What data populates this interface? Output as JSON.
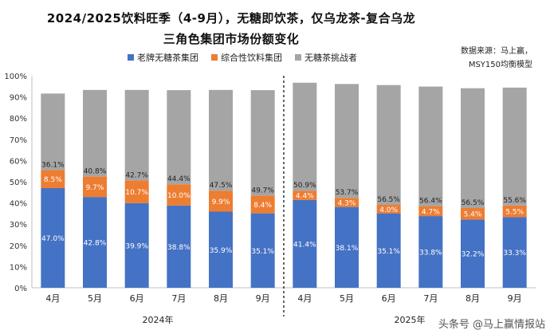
{
  "chart_data": {
    "type": "bar",
    "stacked": true,
    "title_line1": "2024/2025饮料旺季（4-9月），无糖即饮茶，仅乌龙茶-复合乌龙",
    "title_line2": "三角色集团市场份额变化",
    "source_line1": "数据来源：马上赢，",
    "source_line2": "MSY150均衡模型",
    "categories": [
      "4月",
      "5月",
      "6月",
      "7月",
      "8月",
      "9月",
      "4月",
      "5月",
      "6月",
      "7月",
      "8月",
      "9月"
    ],
    "groups": [
      {
        "label": "2024年",
        "start": 0,
        "end": 5
      },
      {
        "label": "2025年",
        "start": 6,
        "end": 11
      }
    ],
    "series": [
      {
        "name": "老牌无糖茶集团",
        "color": "#4472C4",
        "values": [
          47.0,
          42.8,
          39.9,
          38.8,
          35.9,
          35.1,
          41.4,
          38.1,
          35.1,
          33.8,
          32.2,
          33.3
        ],
        "labels": [
          "47.0%",
          "42.8%",
          "39.9%",
          "38.8%",
          "35.9%",
          "35.1%",
          "41.4%",
          "38.1%",
          "35.1%",
          "33.8%",
          "32.2%",
          "33.3%"
        ]
      },
      {
        "name": "综合性饮料集团",
        "color": "#ED7D31",
        "values": [
          8.5,
          9.7,
          10.7,
          10.0,
          9.9,
          8.4,
          4.4,
          4.3,
          4.0,
          4.7,
          5.4,
          5.5
        ],
        "labels": [
          "8.5%",
          "9.7%",
          "10.7%",
          "10.0%",
          "9.9%",
          "8.4%",
          "4.4%",
          "4.3%",
          "4.0%",
          "4.7%",
          "5.4%",
          "5.5%"
        ]
      },
      {
        "name": "无糖茶挑战者",
        "color": "#A5A5A5",
        "values": [
          36.1,
          40.8,
          42.7,
          44.4,
          47.5,
          49.7,
          50.9,
          53.7,
          56.5,
          56.4,
          56.5,
          55.6
        ],
        "labels": [
          "36.1%",
          "40.8%",
          "42.7%",
          "44.4%",
          "47.5%",
          "49.7%",
          "50.9%",
          "53.7%",
          "56.5%",
          "56.4%",
          "56.5%",
          "55.6%"
        ]
      }
    ],
    "ylim": [
      0,
      100
    ],
    "yticks": [
      "0%",
      "10%",
      "20%",
      "30%",
      "40%",
      "50%",
      "60%",
      "70%",
      "80%",
      "90%",
      "100%"
    ],
    "divider_after_index": 5,
    "grid": false,
    "legend_position": "top"
  },
  "watermark": "头条号 @马上赢情报站"
}
